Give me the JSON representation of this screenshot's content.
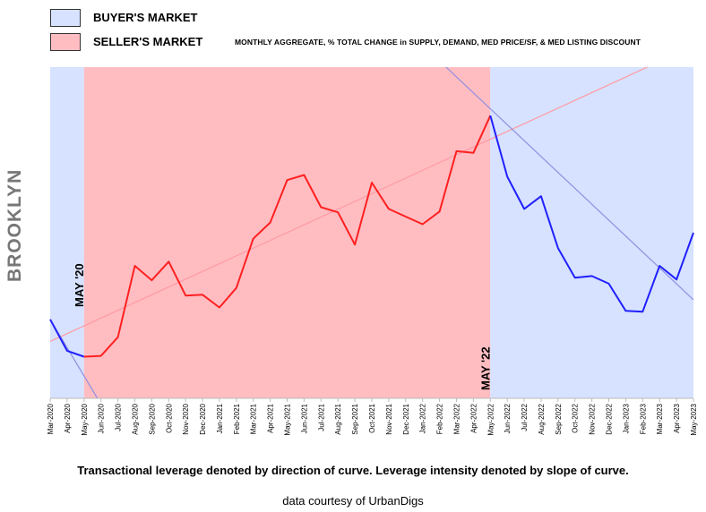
{
  "legend": {
    "buyer": {
      "label": "BUYER'S MARKET",
      "color": "#d6e2ff"
    },
    "seller": {
      "label": "SELLER'S MARKET",
      "color": "#ffbdc2"
    }
  },
  "subtitle": "MONTHLY AGGREGATE, % TOTAL CHANGE in SUPPLY, DEMAND, MED PRICE/SF, & MED LISTING DISCOUNT",
  "ylabel": "BROOKLYN",
  "caption": "Transactional leverage denoted by direction of curve.  Leverage intensity denoted by slope of curve.",
  "credit": "data courtesy of UrbanDigs",
  "chart_data": {
    "type": "line",
    "x": [
      "Mar-2020",
      "Apr-2020",
      "May-2020",
      "Jun-2020",
      "Jul-2020",
      "Aug-2020",
      "Sep-2020",
      "Oct-2020",
      "Nov-2020",
      "Dec-2020",
      "Jan-2021",
      "Feb-2021",
      "Mar-2021",
      "Apr-2021",
      "May-2021",
      "Jun-2021",
      "Jul-2021",
      "Aug-2021",
      "Sep-2021",
      "Oct-2021",
      "Nov-2021",
      "Dec-2021",
      "Jan-2022",
      "Feb-2022",
      "Mar-2022",
      "Apr-2022",
      "May-2022",
      "Jun-2022",
      "Jul-2022",
      "Aug-2022",
      "Sep-2022",
      "Oct-2022",
      "Nov-2022",
      "Dec-2022",
      "Jan-2023",
      "Feb-2023",
      "Mar-2023",
      "Apr-2023",
      "May-2023"
    ],
    "values": [
      9.3,
      5.6,
      4.9,
      5.0,
      7.2,
      15.6,
      13.9,
      16.1,
      12.1,
      12.2,
      10.7,
      13.0,
      18.8,
      20.7,
      25.7,
      26.3,
      22.5,
      21.9,
      18.1,
      25.4,
      22.3,
      21.4,
      20.5,
      22.0,
      29.1,
      28.9,
      33.3,
      26.1,
      22.3,
      23.8,
      17.7,
      14.2,
      14.4,
      13.5,
      10.3,
      10.2,
      15.6,
      14.0,
      19.5
    ],
    "ylim": [
      0,
      39
    ],
    "series": [
      {
        "segment": "buyer",
        "from": "Mar-2020",
        "to": "May-2020",
        "color": "#2020ff"
      },
      {
        "segment": "seller",
        "from": "May-2020",
        "to": "May-2022",
        "color": "#ff2020"
      },
      {
        "segment": "buyer",
        "from": "May-2022",
        "to": "May-2023",
        "color": "#2020ff"
      }
    ],
    "regions": [
      {
        "market": "buyer",
        "from": "Mar-2020",
        "to": "May-2020"
      },
      {
        "market": "seller",
        "from": "May-2020",
        "to": "May-2022"
      },
      {
        "market": "buyer",
        "from": "May-2022",
        "to": "May-2023"
      }
    ],
    "trendlines": [
      {
        "color": "#ff9aa2",
        "from_x": "Mar-2020",
        "from_y": 6.7,
        "to_x": "May-2023",
        "to_y": 41.5
      },
      {
        "color": "#8f8fe0",
        "from_x": "Mar-2020",
        "from_y": 9.3,
        "to_x": "Jun-2020",
        "to_y": -0.7
      },
      {
        "color": "#8f8fe0",
        "from_x": "Jan-2022",
        "from_y": 41.6,
        "to_x": "May-2023",
        "to_y": 11.6
      }
    ],
    "annotations": [
      {
        "text": "MAY '20",
        "x": "May-2020"
      },
      {
        "text": "MAY '22",
        "x": "May-2022"
      }
    ]
  }
}
